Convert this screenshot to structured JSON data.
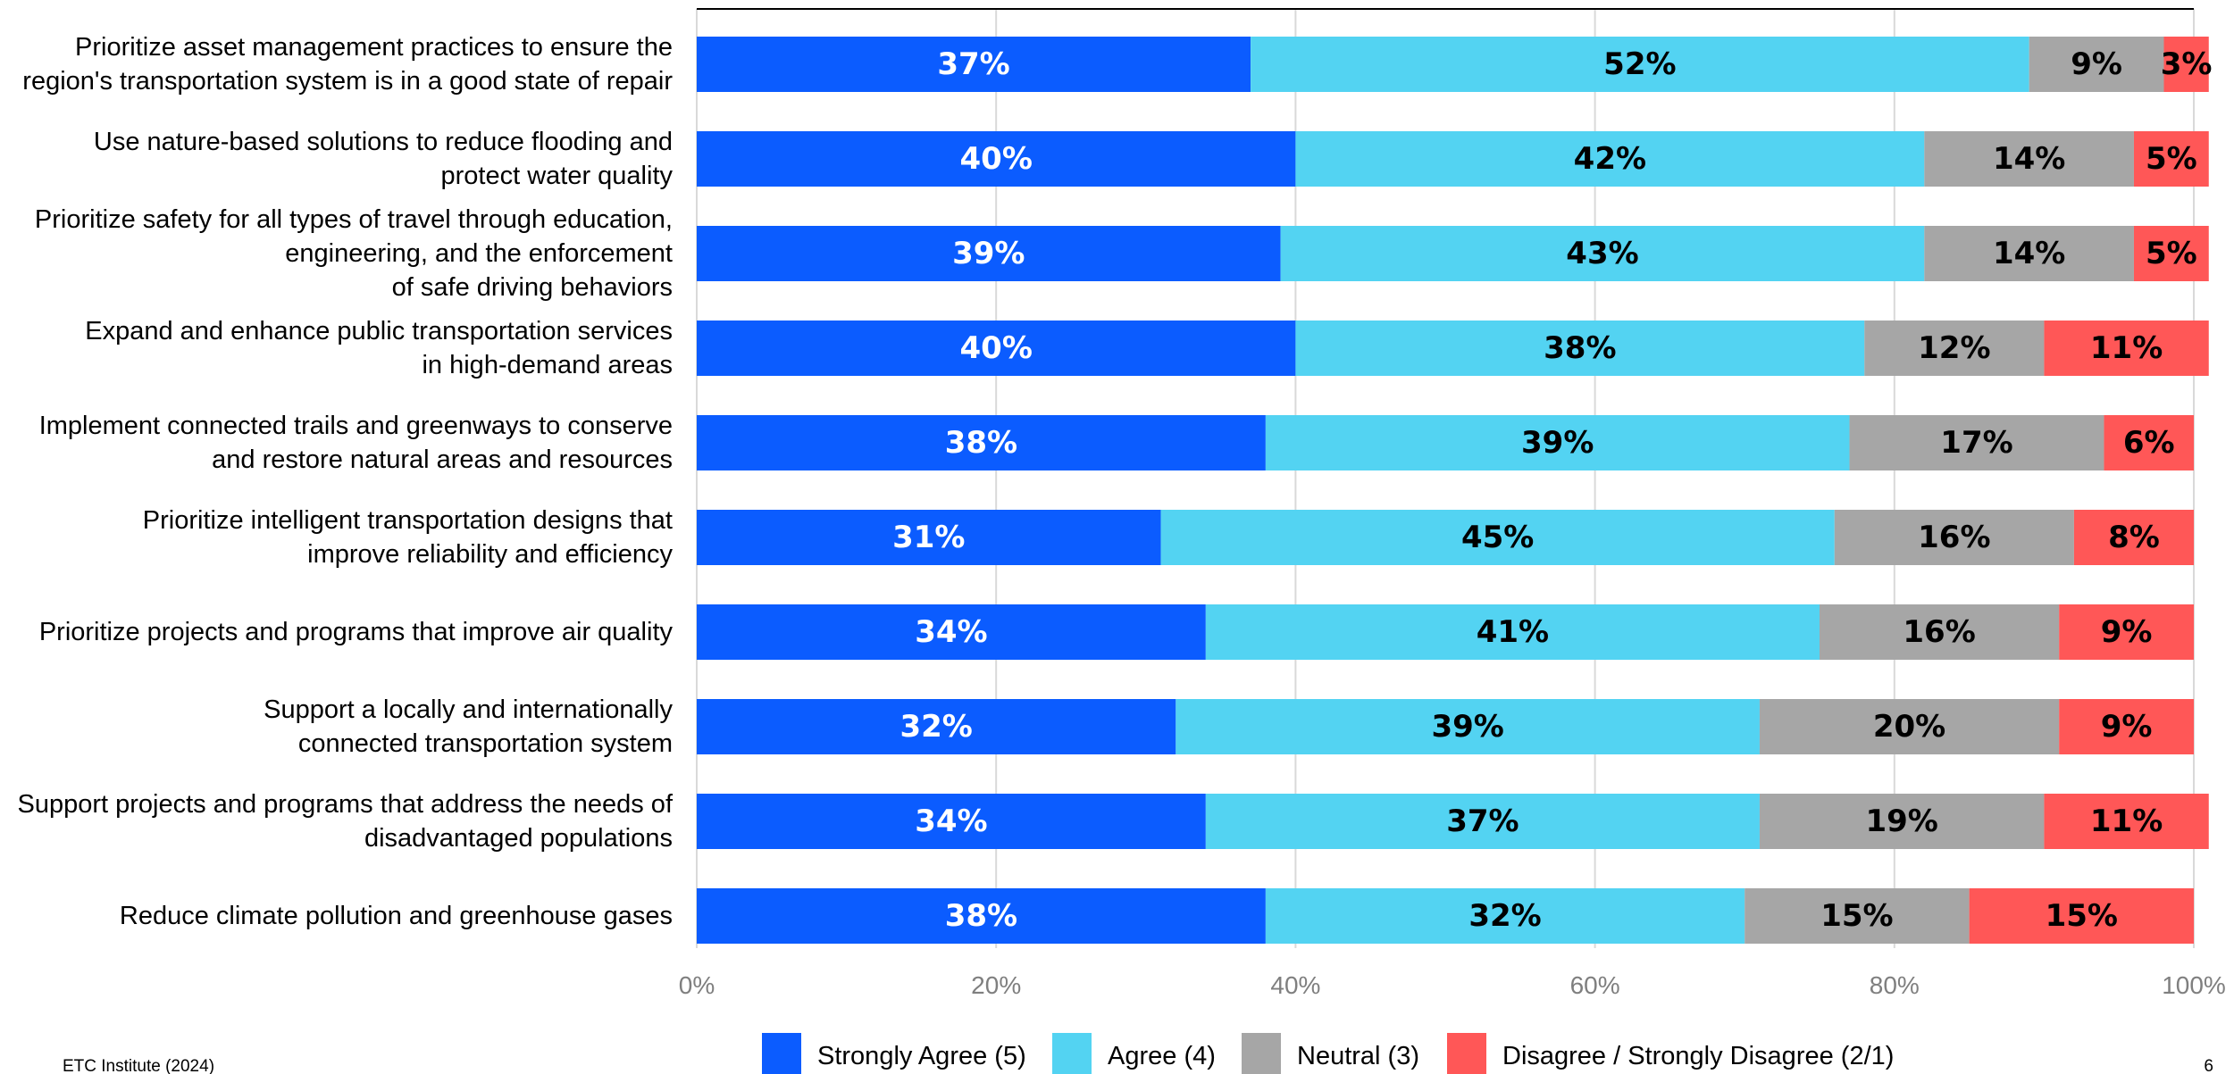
{
  "chart_data": {
    "type": "bar",
    "orientation": "horizontal",
    "stacked": true,
    "categories": [
      [
        "Prioritize asset management practices to ensure the",
        "region's transportation system is in a good state of repair"
      ],
      [
        "Use nature-based solutions to reduce flooding and",
        "protect water quality"
      ],
      [
        "Prioritize safety for all types of travel through education,",
        "engineering, and the enforcement",
        "of safe driving behaviors"
      ],
      [
        "Expand and enhance public transportation services",
        "in high-demand areas"
      ],
      [
        "Implement connected trails and greenways to conserve",
        "and restore natural areas and resources"
      ],
      [
        "Prioritize intelligent transportation designs that",
        "improve reliability and efficiency"
      ],
      [
        "Prioritize projects and programs that improve air quality"
      ],
      [
        "Support a locally and internationally",
        "connected transportation system"
      ],
      [
        "Support projects and programs that address the needs of",
        "disadvantaged populations"
      ],
      [
        "Reduce climate pollution and greenhouse gases"
      ]
    ],
    "series": [
      {
        "name": "Strongly Agree (5)",
        "color": "#0B5CFF",
        "label_color": "#ffffff",
        "values": [
          37,
          40,
          39,
          40,
          38,
          31,
          34,
          32,
          34,
          38
        ]
      },
      {
        "name": "Agree (4)",
        "color": "#53D3F2",
        "label_color": "#000000",
        "values": [
          52,
          42,
          43,
          38,
          39,
          45,
          41,
          39,
          37,
          32
        ]
      },
      {
        "name": "Neutral (3)",
        "color": "#A6A6A6",
        "label_color": "#000000",
        "values": [
          9,
          14,
          14,
          12,
          17,
          16,
          16,
          20,
          19,
          15
        ]
      },
      {
        "name": "Disagree / Strongly Disagree (2/1)",
        "color": "#FF5757",
        "label_color": "#000000",
        "values": [
          3,
          5,
          5,
          11,
          6,
          8,
          9,
          9,
          11,
          15
        ]
      }
    ],
    "x_ticks": [
      "0%",
      "20%",
      "40%",
      "60%",
      "80%",
      "100%"
    ],
    "xlim": [
      0,
      100
    ],
    "grid": true,
    "legend_position": "bottom"
  },
  "footer": {
    "source": "ETC Institute (2024)",
    "page_number": "6"
  }
}
